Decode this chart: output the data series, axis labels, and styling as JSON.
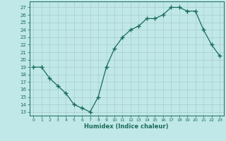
{
  "x": [
    0,
    1,
    2,
    3,
    4,
    5,
    6,
    7,
    8,
    9,
    10,
    11,
    12,
    13,
    14,
    15,
    16,
    17,
    18,
    19,
    20,
    21,
    22,
    23
  ],
  "y": [
    19,
    19,
    17.5,
    16.5,
    15.5,
    14,
    13.5,
    13,
    15,
    19,
    21.5,
    23,
    24,
    24.5,
    25.5,
    25.5,
    26,
    27,
    27,
    26.5,
    26.5,
    24,
    22,
    20.5
  ],
  "line_color": "#1a6b5a",
  "marker": "+",
  "bg_color": "#c0e8e8",
  "grid_color": "#a8cccc",
  "xlabel": "Humidex (Indice chaleur)",
  "xlim": [
    -0.5,
    23.5
  ],
  "ylim": [
    12.5,
    27.8
  ],
  "yticks": [
    13,
    14,
    15,
    16,
    17,
    18,
    19,
    20,
    21,
    22,
    23,
    24,
    25,
    26,
    27
  ],
  "xticks": [
    0,
    1,
    2,
    3,
    4,
    5,
    6,
    7,
    8,
    9,
    10,
    11,
    12,
    13,
    14,
    15,
    16,
    17,
    18,
    19,
    20,
    21,
    22,
    23
  ],
  "tick_color": "#1a6b5a",
  "label_color": "#1a6b5a",
  "spine_color": "#1a6b5a"
}
